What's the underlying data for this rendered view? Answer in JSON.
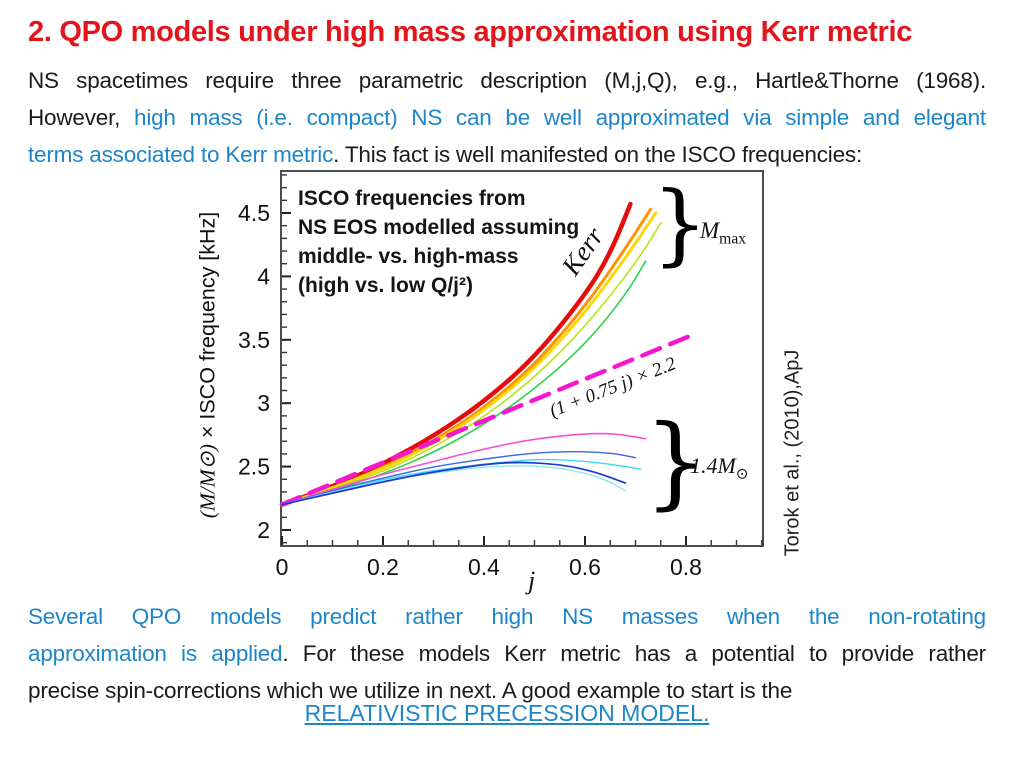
{
  "slide": {
    "title": "2. QPO models under high mass approximation using Kerr metric",
    "para1": {
      "line1": "NS spacetimes require three parametric description (M,j,Q), e.g., Hartle&Thorne (1968).",
      "line2_black": "However,",
      "line2_blue": "high mass (i.e. compact) NS can be well approximated via simple and elegant",
      "line3_blue": "terms associated to Kerr metric",
      "line3_black": ". This fact is well manifested on the ISCO frequencies:"
    },
    "para2": {
      "line1_blue": "Several QPO models predict rather high NS masses when the non-rotating",
      "line2_blue": "approximation is applied",
      "line2_black": ". For these models Kerr metric has a potential to provide rather",
      "line3_black": "precise spin-corrections which we utilize in next. A good example to start is the"
    },
    "link_text": "RELATIVISTIC PRECESSION MODEL.",
    "citation": "Torok et al., (2010),ApJ",
    "colors": {
      "title_red": "#e2151b",
      "accent_blue": "#1c86c8",
      "text_black": "#1b1b1b"
    }
  },
  "chart_data": {
    "type": "line",
    "title_annotation": [
      "ISCO frequencies from",
      "NS EOS modelled assuming",
      "middle- vs. high-mass",
      "(high vs. low Q/j²)"
    ],
    "xlabel": "j",
    "ylabel": "(M/M⊙) × ISCO frequency [kHz]",
    "ylabel_math": "(M/M⊙)",
    "ylabel_rest": " × ISCO frequency [kHz]",
    "xlim": [
      0,
      0.95
    ],
    "ylim": [
      1.87,
      4.83
    ],
    "x_ticks": [
      0,
      0.2,
      0.4,
      0.6,
      0.8
    ],
    "y_ticks": [
      2,
      2.5,
      3,
      3.5,
      4,
      4.5
    ],
    "grid": false,
    "labels": {
      "kerr_curve": "Kerr",
      "formula_line": "(1 + 0.75 j) × 2.2",
      "brace_glyph": "}",
      "m_max": {
        "base": "M",
        "sub": "max"
      },
      "m_14sun": {
        "base": "1.4M",
        "sub": "⊙"
      }
    },
    "series": [
      {
        "id": "kerr",
        "group": "kerr",
        "color": "#e60c0c",
        "width": 4.5,
        "points": [
          [
            0,
            2.2
          ],
          [
            0.1,
            2.34
          ],
          [
            0.2,
            2.52
          ],
          [
            0.3,
            2.74
          ],
          [
            0.4,
            3.01
          ],
          [
            0.5,
            3.36
          ],
          [
            0.6,
            3.85
          ],
          [
            0.65,
            4.18
          ],
          [
            0.69,
            4.57
          ]
        ]
      },
      {
        "id": "eos-mmax-orange",
        "group": "M_max",
        "color": "#ff9400",
        "width": 3,
        "points": [
          [
            0,
            2.2
          ],
          [
            0.1,
            2.33
          ],
          [
            0.2,
            2.49
          ],
          [
            0.3,
            2.7
          ],
          [
            0.4,
            2.96
          ],
          [
            0.5,
            3.3
          ],
          [
            0.6,
            3.76
          ],
          [
            0.68,
            4.22
          ],
          [
            0.73,
            4.53
          ]
        ]
      },
      {
        "id": "eos-mmax-yellow",
        "group": "M_max",
        "color": "#ffd60a",
        "width": 3,
        "points": [
          [
            0,
            2.2
          ],
          [
            0.1,
            2.33
          ],
          [
            0.2,
            2.48
          ],
          [
            0.3,
            2.68
          ],
          [
            0.4,
            2.94
          ],
          [
            0.5,
            3.27
          ],
          [
            0.6,
            3.71
          ],
          [
            0.69,
            4.2
          ],
          [
            0.74,
            4.5
          ]
        ]
      },
      {
        "id": "eos-mmax-lightgreen",
        "group": "M_max",
        "color": "#b5e614",
        "width": 1.6,
        "points": [
          [
            0,
            2.2
          ],
          [
            0.1,
            2.32
          ],
          [
            0.2,
            2.46
          ],
          [
            0.3,
            2.65
          ],
          [
            0.4,
            2.89
          ],
          [
            0.5,
            3.2
          ],
          [
            0.6,
            3.6
          ],
          [
            0.7,
            4.1
          ],
          [
            0.75,
            4.42
          ]
        ]
      },
      {
        "id": "eos-mmax-green",
        "group": "M_max",
        "color": "#2fd24a",
        "width": 1.6,
        "points": [
          [
            0,
            2.2
          ],
          [
            0.1,
            2.31
          ],
          [
            0.2,
            2.44
          ],
          [
            0.3,
            2.61
          ],
          [
            0.4,
            2.83
          ],
          [
            0.5,
            3.11
          ],
          [
            0.6,
            3.46
          ],
          [
            0.68,
            3.85
          ],
          [
            0.72,
            4.12
          ]
        ]
      },
      {
        "id": "kerr-formula-dashed",
        "group": "formula",
        "color": "#f318cf",
        "width": 4.5,
        "dash": [
          19,
          11
        ],
        "points": [
          [
            0,
            2.2
          ],
          [
            0.41,
            2.88
          ],
          [
            0.82,
            3.55
          ]
        ]
      },
      {
        "id": "eos-14msun-pink",
        "group": "1.4M_sun",
        "color": "#fb4fd2",
        "width": 1.6,
        "points": [
          [
            0,
            2.2
          ],
          [
            0.1,
            2.32
          ],
          [
            0.2,
            2.44
          ],
          [
            0.3,
            2.54
          ],
          [
            0.4,
            2.64
          ],
          [
            0.5,
            2.72
          ],
          [
            0.6,
            2.76
          ],
          [
            0.66,
            2.76
          ],
          [
            0.72,
            2.72
          ]
        ]
      },
      {
        "id": "eos-14msun-blue",
        "group": "1.4M_sun",
        "color": "#3a66e8",
        "width": 1.4,
        "points": [
          [
            0,
            2.2
          ],
          [
            0.1,
            2.31
          ],
          [
            0.2,
            2.41
          ],
          [
            0.3,
            2.5
          ],
          [
            0.4,
            2.56
          ],
          [
            0.5,
            2.61
          ],
          [
            0.58,
            2.62
          ],
          [
            0.65,
            2.61
          ],
          [
            0.7,
            2.57
          ]
        ]
      },
      {
        "id": "eos-14msun-cyan",
        "group": "1.4M_sun",
        "color": "#3cd9ef",
        "width": 1.4,
        "points": [
          [
            0,
            2.2
          ],
          [
            0.1,
            2.3
          ],
          [
            0.2,
            2.4
          ],
          [
            0.3,
            2.47
          ],
          [
            0.4,
            2.52
          ],
          [
            0.5,
            2.56
          ],
          [
            0.58,
            2.55
          ],
          [
            0.65,
            2.52
          ],
          [
            0.71,
            2.48
          ]
        ]
      },
      {
        "id": "eos-14msun-lightcyan",
        "group": "1.4M_sun",
        "color": "#8ae8f5",
        "width": 1.4,
        "points": [
          [
            0,
            2.2
          ],
          [
            0.1,
            2.3
          ],
          [
            0.2,
            2.39
          ],
          [
            0.3,
            2.45
          ],
          [
            0.4,
            2.5
          ],
          [
            0.5,
            2.51
          ],
          [
            0.58,
            2.47
          ],
          [
            0.64,
            2.4
          ],
          [
            0.68,
            2.31
          ]
        ]
      },
      {
        "id": "eos-14msun-darkblue",
        "group": "1.4M_sun",
        "color": "#2135d6",
        "width": 1.7,
        "points": [
          [
            0,
            2.2
          ],
          [
            0.1,
            2.29
          ],
          [
            0.2,
            2.38
          ],
          [
            0.3,
            2.46
          ],
          [
            0.44,
            2.54
          ],
          [
            0.55,
            2.52
          ],
          [
            0.62,
            2.46
          ],
          [
            0.68,
            2.37
          ]
        ]
      }
    ]
  }
}
